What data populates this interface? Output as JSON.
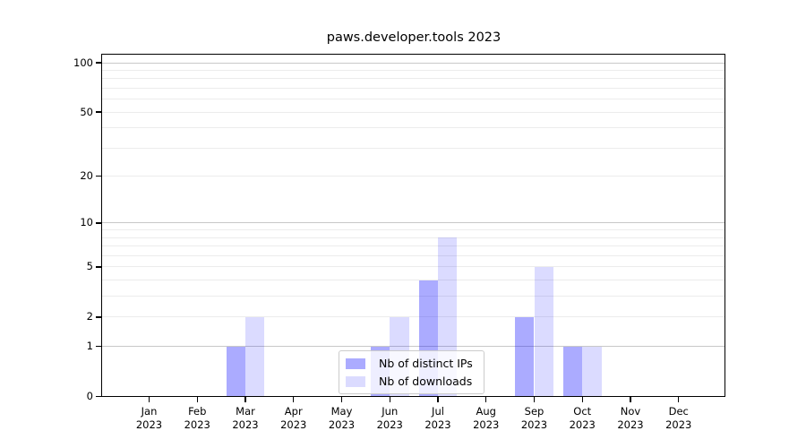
{
  "window": {
    "background_color": "#ffffff"
  },
  "chart_data": {
    "type": "bar",
    "title": "paws.developer.tools 2023",
    "categories": [
      "Jan 2023",
      "Feb 2023",
      "Mar 2023",
      "Apr 2023",
      "May 2023",
      "Jun 2023",
      "Jul 2023",
      "Aug 2023",
      "Sep 2023",
      "Oct 2023",
      "Nov 2023",
      "Dec 2023"
    ],
    "series": [
      {
        "name": "Nb of distinct IPs",
        "values": [
          0,
          0,
          1,
          0,
          0,
          1,
          4,
          0,
          2,
          1,
          0,
          0
        ],
        "color_hex": "#0000ff",
        "alpha": 0.33
      },
      {
        "name": "Nb of downloads",
        "values": [
          0,
          0,
          2,
          0,
          0,
          2,
          8,
          0,
          5,
          1,
          0,
          0
        ],
        "color_hex": "#0000ff",
        "alpha": 0.14
      }
    ],
    "xlabel": "",
    "ylabel": "",
    "yscale": "log10(1+x)",
    "ylim": [
      0,
      115
    ],
    "yticks": [
      0,
      1,
      2,
      5,
      10,
      20,
      50,
      100
    ],
    "major_gridlines": [
      1,
      10,
      100
    ],
    "minor_gridlines": [
      2,
      3,
      4,
      6,
      7,
      8,
      9,
      20,
      30,
      40,
      50,
      60,
      70,
      80,
      90,
      5
    ],
    "grid": true,
    "legend_position": "lower center",
    "colors": {
      "axis": "#000000",
      "major_grid": "#c8c8c8",
      "minor_grid": "#ececec",
      "legend_border": "#cccccc",
      "bar_dark_effective": "#aaaaf8",
      "bar_light_effective": "#dcdcfa"
    }
  }
}
